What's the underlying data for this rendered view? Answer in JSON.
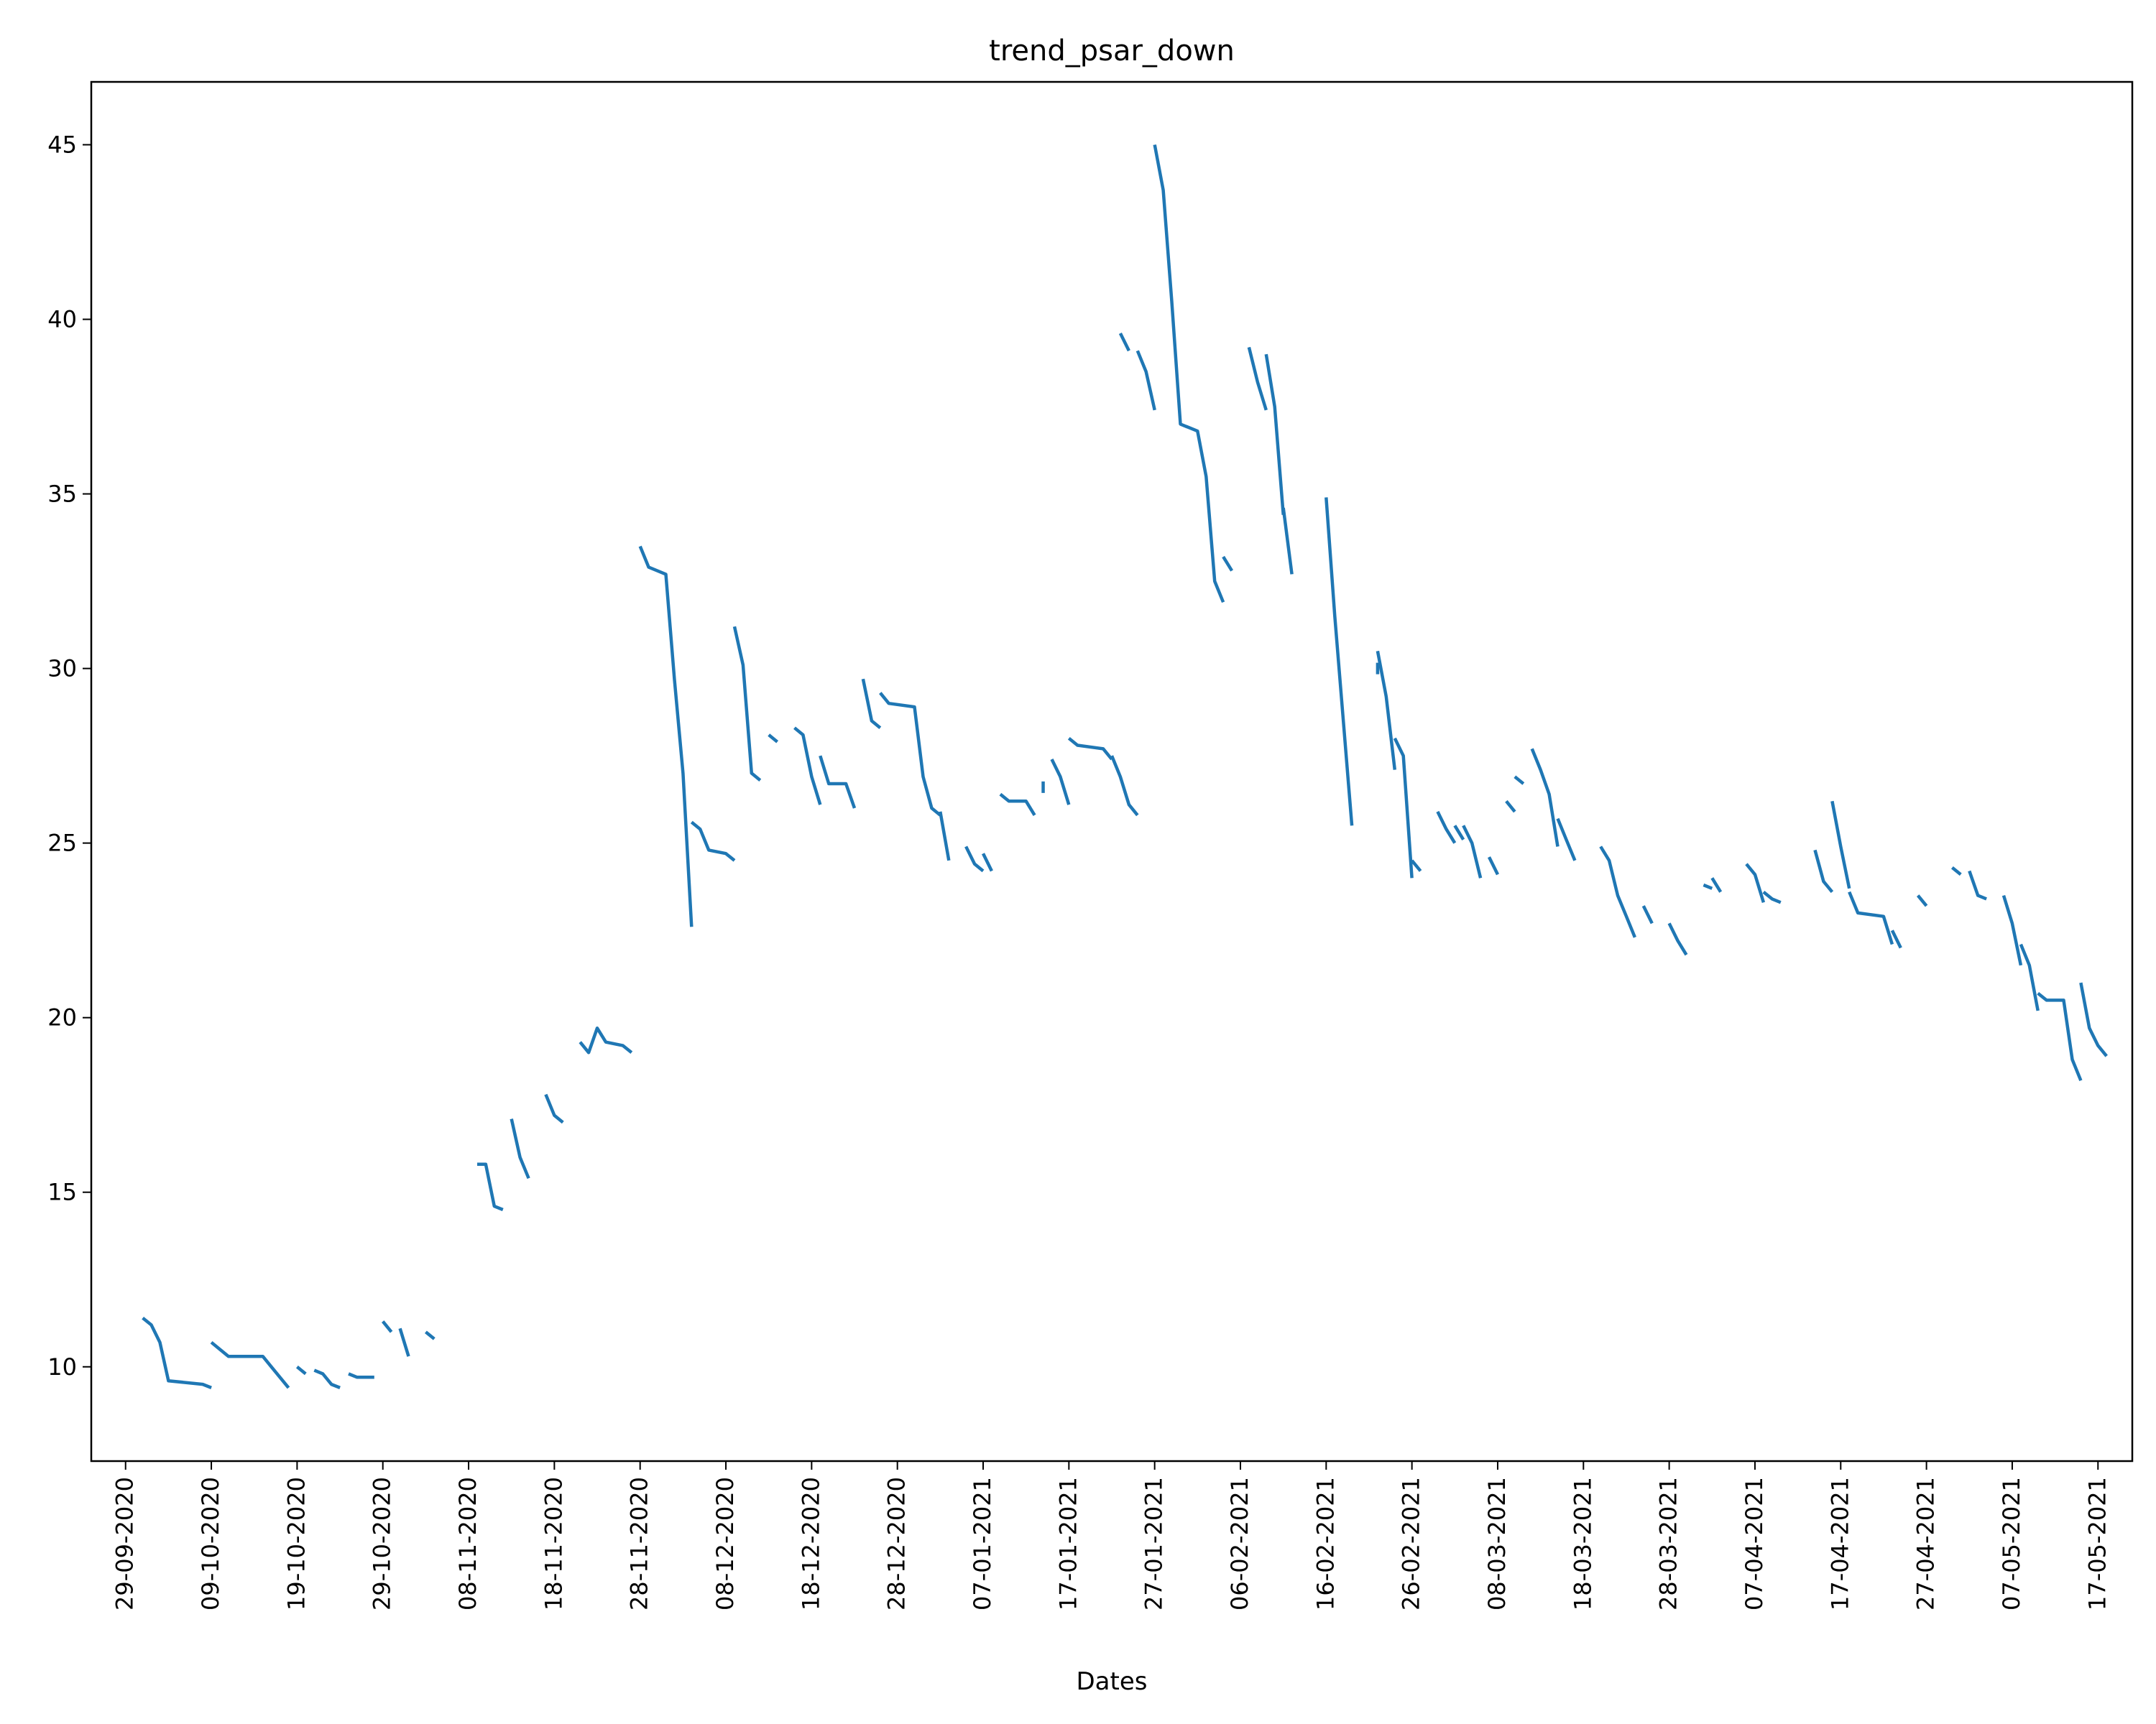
{
  "chart_data": {
    "type": "line",
    "title": "trend_psar_down",
    "xlabel": "Dates",
    "ylabel": "",
    "grid": false,
    "legend": "none",
    "line_color": "#1f77b4",
    "x_ticks": [
      "29-09-2020",
      "09-10-2020",
      "19-10-2020",
      "29-10-2020",
      "08-11-2020",
      "18-11-2020",
      "28-11-2020",
      "08-12-2020",
      "18-12-2020",
      "28-12-2020",
      "07-01-2021",
      "17-01-2021",
      "27-01-2021",
      "06-02-2021",
      "16-02-2021",
      "26-02-2021",
      "08-03-2021",
      "18-03-2021",
      "28-03-2021",
      "07-04-2021",
      "17-04-2021",
      "27-04-2021",
      "07-05-2021",
      "17-05-2021"
    ],
    "xlim": [
      "2020-09-25",
      "2021-05-21"
    ],
    "ylim": [
      7.3,
      46.8
    ],
    "y_ticks": [
      10,
      15,
      20,
      25,
      30,
      35,
      40,
      45
    ],
    "series": [
      {
        "segments": [
          [
            [
              "2020-10-01",
              11.4
            ],
            [
              "2020-10-02",
              11.2
            ],
            [
              "2020-10-03",
              10.7
            ],
            [
              "2020-10-04",
              9.6
            ],
            [
              "2020-10-08",
              9.5
            ],
            [
              "2020-10-09",
              9.4
            ]
          ],
          [
            [
              "2020-10-09",
              10.7
            ],
            [
              "2020-10-10",
              10.5
            ],
            [
              "2020-10-11",
              10.3
            ],
            [
              "2020-10-13",
              10.3
            ],
            [
              "2020-10-15",
              10.3
            ],
            [
              "2020-10-16",
              10.0
            ],
            [
              "2020-10-17",
              9.7
            ],
            [
              "2020-10-18",
              9.4
            ]
          ],
          [
            [
              "2020-10-19",
              10.0
            ],
            [
              "2020-10-20",
              9.8
            ]
          ],
          [
            [
              "2020-10-21",
              9.9
            ],
            [
              "2020-10-22",
              9.8
            ],
            [
              "2020-10-23",
              9.5
            ],
            [
              "2020-10-24",
              9.4
            ]
          ],
          [
            [
              "2020-10-25",
              9.8
            ],
            [
              "2020-10-26",
              9.7
            ],
            [
              "2020-10-28",
              9.7
            ]
          ],
          [
            [
              "2020-10-29",
              11.3
            ],
            [
              "2020-10-30",
              11.0
            ]
          ],
          [
            [
              "2020-10-31",
              11.1
            ],
            [
              "2020-11-01",
              10.3
            ]
          ],
          [
            [
              "2020-11-03",
              11.0
            ],
            [
              "2020-11-04",
              10.8
            ]
          ],
          [
            [
              "2020-11-09",
              15.8
            ],
            [
              "2020-11-10",
              15.8
            ],
            [
              "2020-11-11",
              14.6
            ],
            [
              "2020-11-12",
              14.5
            ]
          ],
          [
            [
              "2020-11-13",
              17.1
            ],
            [
              "2020-11-14",
              16.0
            ],
            [
              "2020-11-15",
              15.4
            ]
          ],
          [
            [
              "2020-11-17",
              17.8
            ],
            [
              "2020-11-18",
              17.2
            ],
            [
              "2020-11-19",
              17.0
            ]
          ],
          [
            [
              "2020-11-21",
              19.3
            ],
            [
              "2020-11-22",
              19.0
            ],
            [
              "2020-11-23",
              19.7
            ],
            [
              "2020-11-24",
              19.3
            ],
            [
              "2020-11-26",
              19.2
            ],
            [
              "2020-11-27",
              19.0
            ]
          ],
          [
            [
              "2020-11-28",
              33.5
            ],
            [
              "2020-11-29",
              32.9
            ],
            [
              "2020-12-01",
              32.7
            ],
            [
              "2020-12-02",
              29.7
            ],
            [
              "2020-12-03",
              27.0
            ],
            [
              "2020-12-04",
              22.6
            ]
          ],
          [
            [
              "2020-12-04",
              25.6
            ],
            [
              "2020-12-05",
              25.4
            ],
            [
              "2020-12-06",
              24.8
            ],
            [
              "2020-12-08",
              24.7
            ],
            [
              "2020-12-09",
              24.5
            ]
          ],
          [
            [
              "2020-12-09",
              31.2
            ],
            [
              "2020-12-10",
              30.1
            ],
            [
              "2020-12-11",
              27.0
            ],
            [
              "2020-12-12",
              26.8
            ]
          ],
          [
            [
              "2020-12-13",
              28.1
            ],
            [
              "2020-12-14",
              27.9
            ]
          ],
          [
            [
              "2020-12-16",
              28.3
            ],
            [
              "2020-12-17",
              28.1
            ],
            [
              "2020-12-18",
              26.9
            ],
            [
              "2020-12-19",
              26.1
            ]
          ],
          [
            [
              "2020-12-19",
              27.5
            ],
            [
              "2020-12-20",
              26.7
            ],
            [
              "2020-12-22",
              26.7
            ],
            [
              "2020-12-23",
              26.0
            ]
          ],
          [
            [
              "2020-12-24",
              29.7
            ],
            [
              "2020-12-25",
              28.5
            ],
            [
              "2020-12-26",
              28.3
            ]
          ],
          [
            [
              "2020-12-26",
              29.3
            ],
            [
              "2020-12-27",
              29.0
            ],
            [
              "2020-12-30",
              28.9
            ],
            [
              "2020-12-31",
              26.9
            ],
            [
              "2021-01-01",
              26.0
            ],
            [
              "2021-01-02",
              25.8
            ]
          ],
          [
            [
              "2021-01-02",
              25.9
            ],
            [
              "2021-01-03",
              24.5
            ]
          ],
          [
            [
              "2021-01-05",
              24.9
            ],
            [
              "2021-01-06",
              24.4
            ],
            [
              "2021-01-07",
              24.2
            ]
          ],
          [
            [
              "2021-01-07",
              24.7
            ],
            [
              "2021-01-08",
              24.2
            ]
          ],
          [
            [
              "2021-01-09",
              26.4
            ],
            [
              "2021-01-10",
              26.2
            ],
            [
              "2021-01-12",
              26.2
            ],
            [
              "2021-01-13",
              25.8
            ]
          ],
          [
            [
              "2021-01-14",
              26.6
            ]
          ],
          [
            [
              "2021-01-15",
              27.4
            ],
            [
              "2021-01-16",
              26.9
            ],
            [
              "2021-01-17",
              26.1
            ]
          ],
          [
            [
              "2021-01-17",
              28.0
            ],
            [
              "2021-01-18",
              27.8
            ],
            [
              "2021-01-21",
              27.7
            ],
            [
              "2021-01-22",
              27.4
            ]
          ],
          [
            [
              "2021-01-22",
              27.5
            ],
            [
              "2021-01-23",
              26.9
            ],
            [
              "2021-01-24",
              26.1
            ],
            [
              "2021-01-25",
              25.8
            ]
          ],
          [
            [
              "2021-01-23",
              39.6
            ],
            [
              "2021-01-24",
              39.1
            ]
          ],
          [
            [
              "2021-01-25",
              39.1
            ],
            [
              "2021-01-26",
              38.5
            ],
            [
              "2021-01-27",
              37.4
            ]
          ],
          [
            [
              "2021-01-27",
              45.0
            ],
            [
              "2021-01-28",
              43.7
            ],
            [
              "2021-01-29",
              40.5
            ],
            [
              "2021-01-30",
              37.0
            ],
            [
              "2021-02-01",
              36.8
            ],
            [
              "2021-02-02",
              35.5
            ],
            [
              "2021-02-03",
              32.5
            ],
            [
              "2021-02-04",
              31.9
            ]
          ],
          [
            [
              "2021-02-04",
              33.2
            ],
            [
              "2021-02-05",
              32.8
            ]
          ],
          [
            [
              "2021-02-07",
              39.2
            ],
            [
              "2021-02-08",
              38.2
            ],
            [
              "2021-02-09",
              37.4
            ]
          ],
          [
            [
              "2021-02-09",
              39.0
            ],
            [
              "2021-02-10",
              37.5
            ],
            [
              "2021-02-11",
              34.4
            ]
          ],
          [
            [
              "2021-02-11",
              34.6
            ],
            [
              "2021-02-12",
              32.7
            ]
          ],
          [
            [
              "2021-02-16",
              34.9
            ],
            [
              "2021-02-17",
              31.5
            ],
            [
              "2021-02-18",
              28.5
            ],
            [
              "2021-02-19",
              25.5
            ]
          ],
          [
            [
              "2021-02-22",
              30.0
            ]
          ],
          [
            [
              "2021-02-22",
              30.5
            ],
            [
              "2021-02-23",
              29.2
            ],
            [
              "2021-02-24",
              27.1
            ]
          ],
          [
            [
              "2021-02-24",
              28.0
            ],
            [
              "2021-02-25",
              27.5
            ],
            [
              "2021-02-26",
              24.0
            ]
          ],
          [
            [
              "2021-02-26",
              24.5
            ],
            [
              "2021-02-27",
              24.2
            ]
          ],
          [
            [
              "2021-03-01",
              25.9
            ],
            [
              "2021-03-02",
              25.4
            ],
            [
              "2021-03-03",
              25.0
            ]
          ],
          [
            [
              "2021-03-03",
              25.5
            ],
            [
              "2021-03-04",
              25.1
            ]
          ],
          [
            [
              "2021-03-04",
              25.5
            ],
            [
              "2021-03-05",
              25.0
            ],
            [
              "2021-03-06",
              24.0
            ]
          ],
          [
            [
              "2021-03-07",
              24.6
            ],
            [
              "2021-03-08",
              24.1
            ]
          ],
          [
            [
              "2021-03-09",
              26.2
            ],
            [
              "2021-03-10",
              25.9
            ]
          ],
          [
            [
              "2021-03-10",
              26.9
            ],
            [
              "2021-03-11",
              26.7
            ]
          ],
          [
            [
              "2021-03-12",
              27.7
            ],
            [
              "2021-03-13",
              27.1
            ],
            [
              "2021-03-14",
              26.4
            ],
            [
              "2021-03-15",
              24.9
            ]
          ],
          [
            [
              "2021-03-15",
              25.7
            ],
            [
              "2021-03-16",
              25.1
            ],
            [
              "2021-03-17",
              24.5
            ]
          ],
          [
            [
              "2021-03-20",
              24.9
            ],
            [
              "2021-03-21",
              24.5
            ],
            [
              "2021-03-22",
              23.5
            ],
            [
              "2021-03-23",
              22.9
            ],
            [
              "2021-03-24",
              22.3
            ]
          ],
          [
            [
              "2021-03-25",
              23.2
            ],
            [
              "2021-03-26",
              22.7
            ]
          ],
          [
            [
              "2021-03-28",
              22.7
            ],
            [
              "2021-03-29",
              22.2
            ],
            [
              "2021-03-30",
              21.8
            ]
          ],
          [
            [
              "2021-04-01",
              23.8
            ],
            [
              "2021-04-02",
              23.7
            ]
          ],
          [
            [
              "2021-04-02",
              24.0
            ],
            [
              "2021-04-03",
              23.6
            ]
          ],
          [
            [
              "2021-04-06",
              24.4
            ],
            [
              "2021-04-07",
              24.1
            ],
            [
              "2021-04-08",
              23.3
            ]
          ],
          [
            [
              "2021-04-08",
              23.6
            ],
            [
              "2021-04-09",
              23.4
            ],
            [
              "2021-04-10",
              23.3
            ]
          ],
          [
            [
              "2021-04-14",
              24.8
            ],
            [
              "2021-04-15",
              23.9
            ],
            [
              "2021-04-16",
              23.6
            ]
          ],
          [
            [
              "2021-04-16",
              26.2
            ],
            [
              "2021-04-17",
              24.9
            ],
            [
              "2021-04-18",
              23.7
            ]
          ],
          [
            [
              "2021-04-18",
              23.6
            ],
            [
              "2021-04-19",
              23.0
            ],
            [
              "2021-04-22",
              22.9
            ],
            [
              "2021-04-23",
              22.1
            ]
          ],
          [
            [
              "2021-04-23",
              22.5
            ],
            [
              "2021-04-24",
              22.0
            ]
          ],
          [
            [
              "2021-04-26",
              23.5
            ],
            [
              "2021-04-27",
              23.2
            ]
          ],
          [
            [
              "2021-04-30",
              24.3
            ],
            [
              "2021-05-01",
              24.1
            ]
          ],
          [
            [
              "2021-05-02",
              24.2
            ],
            [
              "2021-05-03",
              23.5
            ],
            [
              "2021-05-04",
              23.4
            ]
          ],
          [
            [
              "2021-05-06",
              23.5
            ],
            [
              "2021-05-07",
              22.7
            ],
            [
              "2021-05-08",
              21.5
            ]
          ],
          [
            [
              "2021-05-08",
              22.1
            ],
            [
              "2021-05-09",
              21.5
            ],
            [
              "2021-05-10",
              20.2
            ]
          ],
          [
            [
              "2021-05-10",
              20.7
            ],
            [
              "2021-05-11",
              20.5
            ],
            [
              "2021-05-13",
              20.5
            ],
            [
              "2021-05-14",
              18.8
            ],
            [
              "2021-05-15",
              18.2
            ]
          ],
          [
            [
              "2021-05-15",
              21.0
            ],
            [
              "2021-05-16",
              19.7
            ],
            [
              "2021-05-17",
              19.2
            ],
            [
              "2021-05-18",
              18.9
            ]
          ]
        ]
      }
    ]
  }
}
